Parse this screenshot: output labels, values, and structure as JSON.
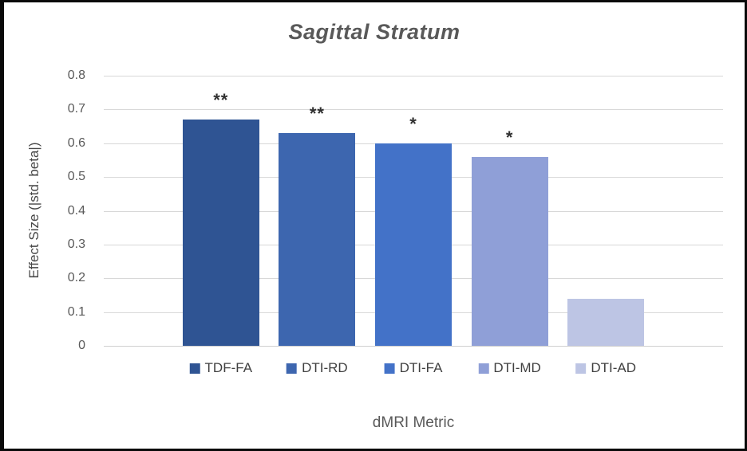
{
  "chart_data": {
    "type": "bar",
    "title": "Sagittal Stratum",
    "xlabel": "dMRI Metric",
    "ylabel": "Effect Size (|std. beta|)",
    "ylim": [
      0,
      0.8
    ],
    "yticks": [
      "0.8",
      "0.7",
      "0.6",
      "0.5",
      "0.4",
      "0.3",
      "0.2",
      "0.1",
      "0"
    ],
    "grid": true,
    "legend_position": "bottom",
    "series": [
      {
        "name": "TDF-FA",
        "value": 0.67,
        "color": "#2F5493",
        "significance": "**"
      },
      {
        "name": "DTI-RD",
        "value": 0.63,
        "color": "#3D66AF",
        "significance": "**"
      },
      {
        "name": "DTI-FA",
        "value": 0.6,
        "color": "#4372C8",
        "significance": "*"
      },
      {
        "name": "DTI-MD",
        "value": 0.56,
        "color": "#8F9FD7",
        "significance": "*"
      },
      {
        "name": "DTI-AD",
        "value": 0.14,
        "color": "#BDC5E4",
        "significance": ""
      }
    ]
  },
  "colors": {
    "background": "#FFFFFF",
    "frame": "#0A0A0A",
    "gridline": "#D8D8D8",
    "axis_line": "#CFCFCF",
    "title_text": "#595959",
    "axis_text": "#595959",
    "legend_text": "#404040",
    "significance_text": "#303030"
  }
}
